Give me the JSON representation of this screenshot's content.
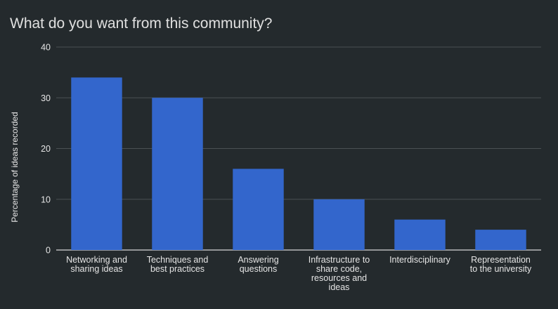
{
  "chart_data": {
    "type": "bar",
    "title": "What do you want from this community?",
    "xlabel": "",
    "ylabel": "Percentage of ideas recorded",
    "ylim": [
      0,
      40
    ],
    "yticks": [
      0,
      10,
      20,
      30,
      40
    ],
    "grid": true,
    "legend": "none",
    "categories": [
      [
        "Networking and",
        "sharing ideas"
      ],
      [
        "Techniques and",
        "best practices"
      ],
      [
        "Answering",
        "questions"
      ],
      [
        "Infrastructure to",
        "share code,",
        "resources and",
        "ideas"
      ],
      [
        "Interdisciplinary"
      ],
      [
        "Representation",
        "to the university"
      ]
    ],
    "values": [
      34,
      30,
      16,
      10,
      6,
      4
    ],
    "colors": {
      "background": "#242a2d",
      "bar": "#3366cc",
      "grid": "#4a5053",
      "baseline": "#d8d8d8",
      "text": "#e6e6e6"
    }
  }
}
